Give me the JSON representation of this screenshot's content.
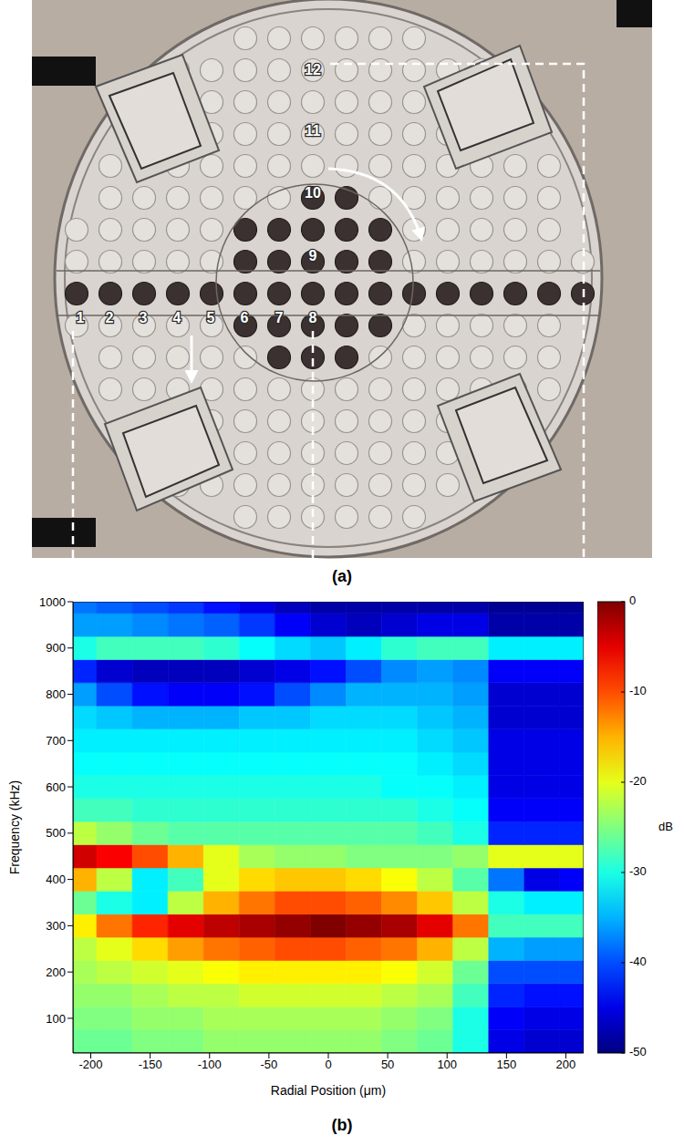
{
  "panel_a": {
    "label": "(a)",
    "point_labels": [
      "1",
      "2",
      "3",
      "4",
      "5",
      "6",
      "7",
      "8",
      "9",
      "10",
      "11",
      "12"
    ]
  },
  "chart_data": {
    "type": "heatmap",
    "label": "(b)",
    "x_label": "Radial Position (μm)",
    "y_label": "Frequency (kHz)",
    "xlim": [
      -215,
      215
    ],
    "ylim": [
      25,
      1000
    ],
    "xticks": [
      -200,
      -150,
      -100,
      -50,
      0,
      50,
      100,
      150,
      200
    ],
    "yticks": [
      100,
      200,
      300,
      400,
      500,
      600,
      700,
      800,
      900,
      1000
    ],
    "x": [
      -210,
      -180,
      -150,
      -120,
      -90,
      -60,
      -30,
      0,
      30,
      60,
      90,
      120,
      150,
      180,
      210
    ],
    "y": [
      50,
      100,
      150,
      200,
      250,
      300,
      350,
      400,
      450,
      500,
      550,
      600,
      650,
      700,
      750,
      800,
      850,
      900,
      950,
      1000
    ],
    "cells": [
      [
        -26,
        -26,
        -25,
        -25,
        -24,
        -24,
        -24,
        -24,
        -24,
        -25,
        -26,
        -30,
        -45,
        -46,
        -46
      ],
      [
        -25,
        -25,
        -24,
        -24,
        -23,
        -23,
        -23,
        -23,
        -23,
        -24,
        -25,
        -30,
        -44,
        -45,
        -45
      ],
      [
        -24,
        -24,
        -23,
        -22,
        -22,
        -21,
        -21,
        -21,
        -21,
        -22,
        -23,
        -28,
        -42,
        -43,
        -43
      ],
      [
        -23,
        -22,
        -21,
        -20,
        -19,
        -18,
        -18,
        -18,
        -18,
        -19,
        -21,
        -26,
        -40,
        -40,
        -40
      ],
      [
        -22,
        -20,
        -17,
        -14,
        -12,
        -11,
        -10,
        -10,
        -11,
        -12,
        -15,
        -22,
        -35,
        -36,
        -36
      ],
      [
        -18,
        -12,
        -8,
        -5,
        -3,
        -2,
        -1,
        0,
        -1,
        -2,
        -5,
        -12,
        -28,
        -28,
        -28
      ],
      [
        -26,
        -30,
        -32,
        -22,
        -15,
        -12,
        -10,
        -10,
        -11,
        -13,
        -16,
        -22,
        -30,
        -32,
        -32
      ],
      [
        -15,
        -22,
        -32,
        -28,
        -20,
        -17,
        -16,
        -16,
        -17,
        -19,
        -22,
        -27,
        -38,
        -45,
        -44
      ],
      [
        -4,
        -6,
        -10,
        -15,
        -20,
        -23,
        -24,
        -24,
        -25,
        -25,
        -25,
        -24,
        -20,
        -20,
        -20
      ],
      [
        -22,
        -24,
        -26,
        -27,
        -27,
        -27,
        -27,
        -27,
        -27,
        -27,
        -28,
        -30,
        -42,
        -42,
        -42
      ],
      [
        -28,
        -28,
        -29,
        -29,
        -29,
        -29,
        -29,
        -29,
        -29,
        -29,
        -30,
        -31,
        -44,
        -44,
        -44
      ],
      [
        -30,
        -30,
        -30,
        -30,
        -30,
        -30,
        -30,
        -30,
        -30,
        -31,
        -31,
        -32,
        -45,
        -45,
        -45
      ],
      [
        -31,
        -31,
        -31,
        -31,
        -31,
        -31,
        -31,
        -31,
        -31,
        -31,
        -32,
        -33,
        -45,
        -45,
        -45
      ],
      [
        -32,
        -32,
        -32,
        -32,
        -32,
        -32,
        -32,
        -32,
        -32,
        -32,
        -33,
        -34,
        -45,
        -45,
        -45
      ],
      [
        -33,
        -34,
        -35,
        -35,
        -35,
        -34,
        -34,
        -33,
        -33,
        -33,
        -34,
        -35,
        -46,
        -46,
        -46
      ],
      [
        -36,
        -40,
        -43,
        -44,
        -44,
        -43,
        -40,
        -37,
        -35,
        -35,
        -35,
        -36,
        -46,
        -46,
        -46
      ],
      [
        -42,
        -46,
        -47,
        -47,
        -47,
        -46,
        -45,
        -43,
        -40,
        -37,
        -36,
        -37,
        -44,
        -44,
        -44
      ],
      [
        -30,
        -28,
        -28,
        -28,
        -29,
        -31,
        -33,
        -34,
        -32,
        -29,
        -28,
        -28,
        -32,
        -32,
        -32
      ],
      [
        -36,
        -36,
        -37,
        -38,
        -39,
        -41,
        -44,
        -46,
        -47,
        -46,
        -45,
        -45,
        -48,
        -48,
        -48
      ],
      [
        -38,
        -39,
        -40,
        -41,
        -43,
        -45,
        -47,
        -48,
        -48,
        -48,
        -48,
        -48,
        -49,
        -49,
        -49
      ]
    ],
    "colorbar": {
      "label": "dB",
      "range": [
        -50,
        0
      ],
      "ticks": [
        0,
        -10,
        -20,
        -30,
        -40,
        -50
      ]
    }
  }
}
